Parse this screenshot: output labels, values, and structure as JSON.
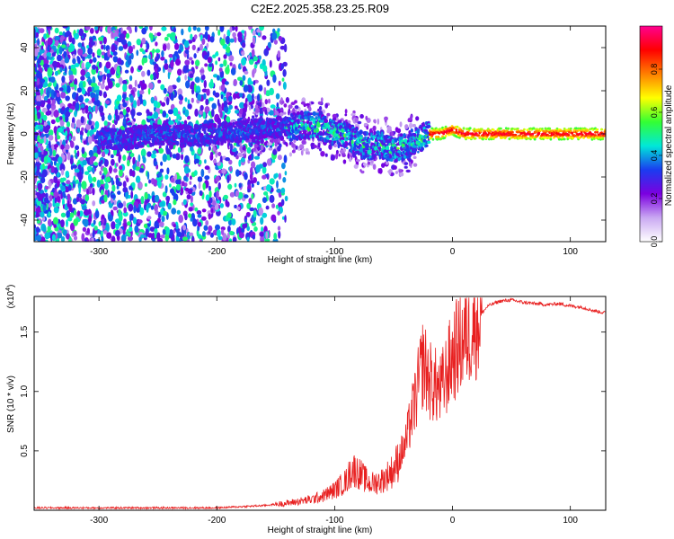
{
  "figure": {
    "title": "C2E2.2025.358.23.25.R09"
  },
  "chart_data": [
    {
      "type": "heatmap",
      "xlabel": "Height of straight line (km)",
      "ylabel": "Frequency (Hz)",
      "xlim": [
        -355,
        130
      ],
      "ylim": [
        -50,
        50
      ],
      "x_ticks": [
        -300,
        -200,
        -100,
        0,
        100
      ],
      "y_ticks": [
        -40,
        -20,
        0,
        20,
        40
      ],
      "colorbar": {
        "label": "Normalized spectral amplitude",
        "range": [
          0,
          1
        ],
        "ticks": [
          0.0,
          0.2,
          0.4,
          0.6,
          0.8
        ],
        "tick_labels": [
          "0.0",
          "0.2",
          "0.4",
          "0.6",
          "0.8"
        ],
        "colormap": [
          "#ffffff",
          "#c9a8f2",
          "#7b00e0",
          "#1a3cf0",
          "#00e8d8",
          "#33ff33",
          "#ffff00",
          "#ff7f00",
          "#ff0000",
          "#ff0090"
        ]
      },
      "ridge": {
        "x": [
          -295,
          -280,
          -260,
          -240,
          -220,
          -200,
          -180,
          -160,
          -140,
          -125,
          -110,
          -100,
          -90,
          -80,
          -70,
          -60,
          -50,
          -40,
          -30,
          -20,
          -10,
          0,
          10,
          30,
          60,
          90,
          130
        ],
        "y": [
          -2,
          -3,
          -1,
          0,
          -1,
          0,
          1,
          3,
          3,
          4,
          3,
          1,
          -1,
          -4,
          -6,
          -5,
          -7,
          -6,
          -3,
          0,
          0,
          2,
          0,
          0,
          0,
          0,
          0
        ]
      }
    },
    {
      "type": "line",
      "xlabel": "Height of straight line (km)",
      "ylabel": "SNR (10 * v/v)",
      "y_multiplier": "(x10",
      "y_multiplier_exp": "4",
      "y_multiplier_close": ")",
      "xlim": [
        -355,
        130
      ],
      "ylim": [
        0,
        1.8
      ],
      "x_ticks": [
        -300,
        -200,
        -100,
        0,
        100
      ],
      "y_ticks": [
        0.5,
        1.0,
        1.5
      ],
      "y_tick_labels": [
        "0.5",
        "1.0",
        "1.5"
      ],
      "color": "#e82020",
      "series": [
        {
          "x": [
            -355,
            -300,
            -250,
            -200,
            -180,
            -160,
            -140,
            -120,
            -110,
            -100,
            -90,
            -85,
            -80,
            -70,
            -60,
            -50,
            -40,
            -35,
            -30,
            -25,
            -20,
            -15,
            -10,
            -5,
            0,
            5,
            10,
            20,
            30,
            40,
            50,
            60,
            70,
            80,
            90,
            100,
            110,
            120,
            130
          ],
          "y": [
            0.02,
            0.02,
            0.02,
            0.02,
            0.03,
            0.04,
            0.06,
            0.09,
            0.12,
            0.17,
            0.25,
            0.35,
            0.32,
            0.22,
            0.25,
            0.34,
            0.55,
            0.78,
            1.0,
            1.25,
            1.1,
            1.05,
            1.0,
            1.15,
            1.3,
            1.38,
            1.45,
            1.6,
            1.72,
            1.76,
            1.77,
            1.75,
            1.74,
            1.73,
            1.74,
            1.72,
            1.71,
            1.68,
            1.66
          ]
        }
      ]
    }
  ]
}
